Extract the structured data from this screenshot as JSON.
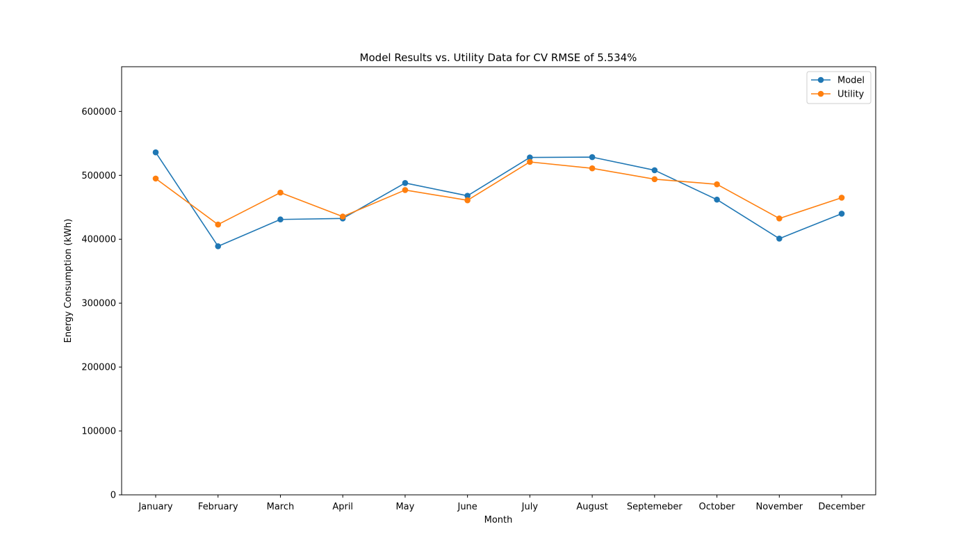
{
  "chart_data": {
    "type": "line",
    "title": "Model Results vs. Utility Data for CV RMSE of 5.534%",
    "xlabel": "Month",
    "ylabel": "Energy Consumption (kWh)",
    "categories": [
      "January",
      "February",
      "March",
      "April",
      "May",
      "June",
      "July",
      "August",
      "Septemeber",
      "October",
      "November",
      "December"
    ],
    "ylim": [
      0,
      670000
    ],
    "yticks": [
      0,
      100000,
      200000,
      300000,
      400000,
      500000,
      600000
    ],
    "ytick_labels": [
      "0",
      "100000",
      "200000",
      "300000",
      "400000",
      "500000",
      "600000"
    ],
    "grid": false,
    "legend_position": "top-right",
    "series": [
      {
        "name": "Model",
        "color": "#1f77b4",
        "values": [
          536000,
          389000,
          431000,
          432500,
          488000,
          468000,
          528000,
          528500,
          508000,
          462000,
          401000,
          440000
        ]
      },
      {
        "name": "Utility",
        "color": "#ff7f0e",
        "values": [
          495000,
          423000,
          473000,
          435500,
          477000,
          461000,
          521000,
          511000,
          494000,
          486000,
          432500,
          465000
        ]
      }
    ]
  }
}
